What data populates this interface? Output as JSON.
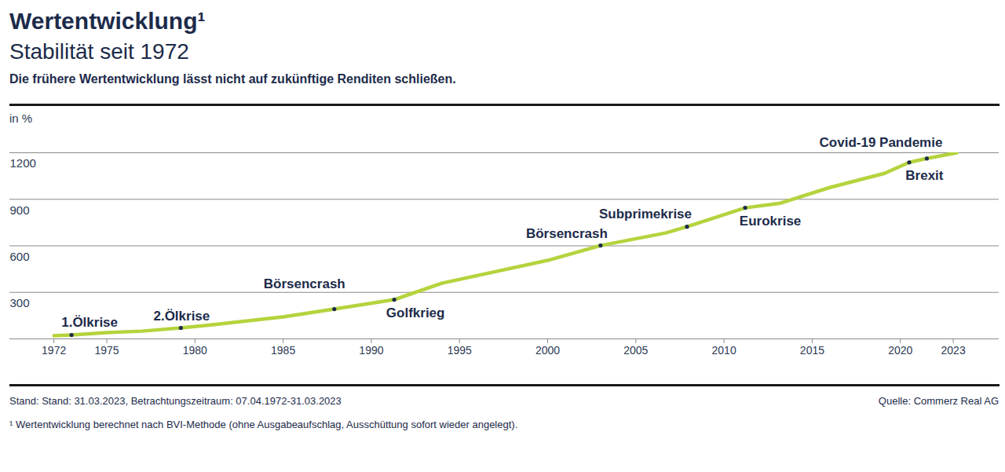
{
  "chart_data": {
    "type": "line",
    "title": "Wertentwicklung¹",
    "subtitle": "Stabilität seit 1972",
    "note": "Die frühere Wertentwicklung lässt nicht auf zukünftige Renditen schließen.",
    "ylabel": "in %",
    "x": [
      1972.0,
      1973.0,
      1975.0,
      1977.0,
      1979.2,
      1981.0,
      1985.0,
      1987.9,
      1991.3,
      1994.0,
      2000.0,
      2003.0,
      2006.7,
      2007.9,
      2011.2,
      2013.2,
      2016.0,
      2019.1,
      2020.5,
      2021.5,
      2023.2
    ],
    "values": [
      20,
      25,
      40,
      50,
      71,
      91,
      142,
      192,
      253,
      359,
      506,
      602,
      683,
      723,
      845,
      875,
      976,
      1067,
      1138,
      1163,
      1200
    ],
    "color": "#b5d33d",
    "xlim": [
      1969.5,
      2025.6
    ],
    "xticks": [
      1972,
      1975,
      1980,
      1985,
      1990,
      1995,
      2000,
      2005,
      2010,
      2015,
      2020,
      2023
    ],
    "ylim": [
      0,
      1200
    ],
    "yticks": [
      300,
      600,
      900,
      1200
    ],
    "grid": true,
    "annotations": [
      {
        "text": "1.Ölkrise",
        "x": 1973.0,
        "y": 25
      },
      {
        "text": "2.Ölkrise",
        "x": 1979.2,
        "y": 71
      },
      {
        "text": "Börsencrash",
        "x": 1987.9,
        "y": 192
      },
      {
        "text": "Golfkrieg",
        "x": 1991.3,
        "y": 253
      },
      {
        "text": "Börsencrash",
        "x": 2003.0,
        "y": 602
      },
      {
        "text": "Subprimekrise",
        "x": 2007.9,
        "y": 723
      },
      {
        "text": "Eurokrise",
        "x": 2011.2,
        "y": 845
      },
      {
        "text": "Covid-19 Pandemie",
        "x": 2020.5,
        "y": 1138
      },
      {
        "text": "Brexit",
        "x": 2021.5,
        "y": 1163
      }
    ],
    "stand": "Stand: Stand: 31.03.2023, Betrachtungszeitraum: 07.04.1972-31.03.2023",
    "source": "Quelle: Commerz Real AG",
    "footnote": "¹ Wertentwicklung berechnet nach BVI-Methode (ohne Ausgabeaufschlag, Ausschüttung sofort wieder angelegt)."
  }
}
